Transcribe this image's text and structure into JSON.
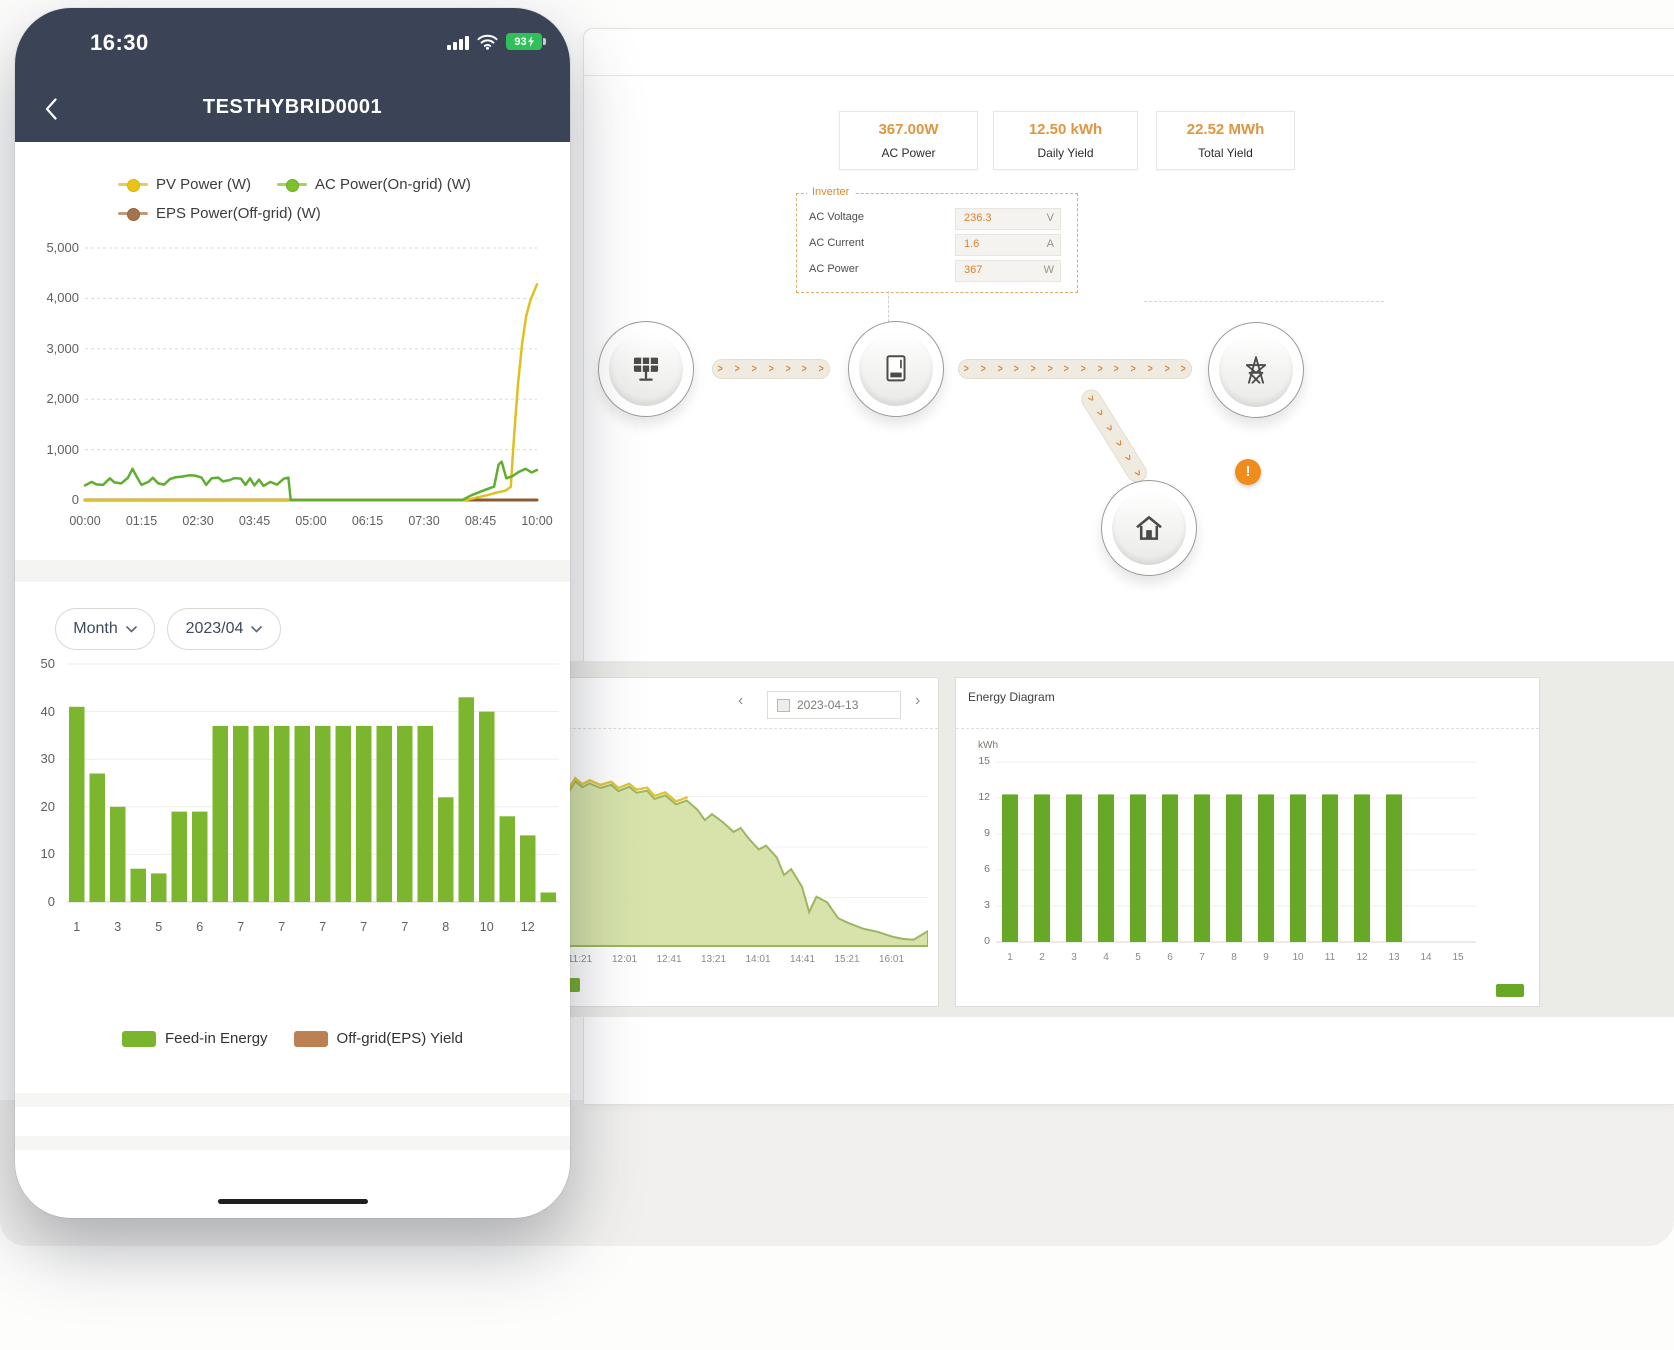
{
  "icons": {
    "back": "‹",
    "prev": "‹",
    "next": "›",
    "chevron": ">",
    "warning": "!"
  },
  "colors": {
    "header_navy": "#3b4456",
    "pv_yellow": "#e0c020",
    "ac_green": "#5fae32",
    "eps_brown": "#8a5a34",
    "bar_green": "#7cb62e",
    "desktop_bar_green": "#68a827",
    "area_fill": "#d5e2a6",
    "area_stroke": "#95b457",
    "area_top_yellow": "#e0c43c",
    "orange_accent": "#de9640",
    "battery_green": "#2fc158"
  },
  "phone": {
    "status_bar": {
      "time": "16:30",
      "battery": "93"
    },
    "nav": {
      "title": "TESTHYBRID0001"
    },
    "power_chart": {
      "type": "line",
      "ylim": [
        0,
        5000
      ],
      "xlim_hours": [
        0,
        10
      ],
      "y_ticks": [
        "5,000",
        "4,000",
        "3,000",
        "2,000",
        "1,000",
        "0"
      ],
      "x_ticks": [
        "00:00",
        "01:15",
        "02:30",
        "03:45",
        "05:00",
        "06:15",
        "07:30",
        "08:45",
        "10:00"
      ],
      "legend": [
        {
          "label": "PV Power (W)",
          "color": "#e9c416"
        },
        {
          "label": "AC Power(On-grid) (W)",
          "color": "#7cc22f"
        },
        {
          "label": "EPS Power(Off-grid) (W)",
          "color": "#a5744d"
        }
      ],
      "series": [
        {
          "name": "EPS Power(Off-grid) (W)",
          "color": "#8a5a34",
          "width": 3,
          "points": [
            [
              0,
              0
            ],
            [
              10,
              0
            ]
          ]
        },
        {
          "name": "PV Power (W)",
          "color": "#e0c020",
          "width": 2.5,
          "points": [
            [
              0,
              0
            ],
            [
              8.45,
              0
            ],
            [
              8.65,
              45
            ],
            [
              8.9,
              95
            ],
            [
              9.1,
              145
            ],
            [
              9.3,
              185
            ],
            [
              9.42,
              260
            ],
            [
              9.47,
              950
            ],
            [
              9.52,
              1600
            ],
            [
              9.58,
              2300
            ],
            [
              9.67,
              3100
            ],
            [
              9.76,
              3650
            ],
            [
              9.85,
              3950
            ],
            [
              9.94,
              4150
            ],
            [
              10,
              4280
            ]
          ]
        },
        {
          "name": "AC Power(On-grid) (W)",
          "color": "#5fae32",
          "width": 2.5,
          "points": [
            [
              0,
              290
            ],
            [
              0.15,
              360
            ],
            [
              0.25,
              310
            ],
            [
              0.4,
              300
            ],
            [
              0.55,
              430
            ],
            [
              0.65,
              350
            ],
            [
              0.8,
              330
            ],
            [
              0.95,
              440
            ],
            [
              1.05,
              620
            ],
            [
              1.15,
              450
            ],
            [
              1.25,
              300
            ],
            [
              1.4,
              360
            ],
            [
              1.5,
              440
            ],
            [
              1.62,
              330
            ],
            [
              1.75,
              305
            ],
            [
              1.88,
              415
            ],
            [
              2,
              450
            ],
            [
              2.15,
              465
            ],
            [
              2.3,
              490
            ],
            [
              2.45,
              480
            ],
            [
              2.58,
              445
            ],
            [
              2.68,
              300
            ],
            [
              2.8,
              430
            ],
            [
              2.95,
              445
            ],
            [
              3.05,
              370
            ],
            [
              3.2,
              395
            ],
            [
              3.3,
              435
            ],
            [
              3.45,
              425
            ],
            [
              3.55,
              300
            ],
            [
              3.65,
              430
            ],
            [
              3.75,
              290
            ],
            [
              3.85,
              405
            ],
            [
              3.95,
              280
            ],
            [
              4.1,
              360
            ],
            [
              4.25,
              305
            ],
            [
              4.4,
              425
            ],
            [
              4.5,
              445
            ],
            [
              4.55,
              0
            ],
            [
              8.35,
              0
            ],
            [
              8.55,
              95
            ],
            [
              8.75,
              165
            ],
            [
              8.95,
              235
            ],
            [
              9.05,
              265
            ],
            [
              9.15,
              705
            ],
            [
              9.22,
              760
            ],
            [
              9.32,
              430
            ],
            [
              9.45,
              470
            ],
            [
              9.6,
              560
            ],
            [
              9.75,
              620
            ],
            [
              9.88,
              545
            ],
            [
              10,
              595
            ]
          ]
        }
      ]
    },
    "filters": {
      "period": "Month",
      "date": "2023/04"
    },
    "energy_chart": {
      "type": "bar",
      "ylim": [
        0,
        50
      ],
      "y_ticks": [
        "50",
        "40",
        "30",
        "20",
        "10",
        "0"
      ],
      "x_ticks": [
        "1",
        "3",
        "5",
        "6",
        "7",
        "7",
        "7",
        "7",
        "7",
        "8",
        "10",
        "12"
      ],
      "bar_color": "#7cb62e",
      "values": [
        41,
        27,
        20,
        7,
        6,
        19,
        19,
        37,
        37,
        37,
        37,
        37,
        37,
        37,
        37,
        37,
        37,
        37,
        22,
        43,
        40,
        18,
        14,
        2
      ],
      "legend": [
        {
          "label": "Feed-in Energy",
          "color": "#7ab62d"
        },
        {
          "label": "Off-grid(EPS) Yield",
          "color": "#bb8153"
        }
      ]
    }
  },
  "desktop": {
    "stats": [
      {
        "value": "367.00W",
        "label": "AC Power"
      },
      {
        "value": "12.50 kWh",
        "label": "Daily Yield"
      },
      {
        "value": "22.52 MWh",
        "label": "Total Yield"
      }
    ],
    "inverter_panel": {
      "title": "Inverter",
      "rows": [
        {
          "label": "AC Voltage",
          "value": "236.3",
          "unit": "V"
        },
        {
          "label": "AC Current",
          "value": "1.6",
          "unit": "A"
        },
        {
          "label": "AC Power",
          "value": "367",
          "unit": "W"
        }
      ]
    },
    "flow": {
      "nodes": [
        "solar-panel",
        "inverter",
        "power-grid",
        "home"
      ],
      "warning": "!"
    },
    "day_panel": {
      "date": "2023-04-13",
      "ylim": [
        0,
        5000
      ],
      "x_ticks": [
        "11:21",
        "12:01",
        "12:41",
        "13:21",
        "14:01",
        "14:41",
        "15:21",
        "16:01"
      ],
      "area_points": [
        [
          0,
          3850
        ],
        [
          0.02,
          4150
        ],
        [
          0.04,
          4000
        ],
        [
          0.06,
          4100
        ],
        [
          0.09,
          3980
        ],
        [
          0.12,
          4060
        ],
        [
          0.14,
          3900
        ],
        [
          0.17,
          4010
        ],
        [
          0.19,
          3860
        ],
        [
          0.22,
          3910
        ],
        [
          0.24,
          3700
        ],
        [
          0.27,
          3790
        ],
        [
          0.3,
          3560
        ],
        [
          0.33,
          3660
        ],
        [
          0.36,
          3420
        ],
        [
          0.38,
          3160
        ],
        [
          0.4,
          3310
        ],
        [
          0.43,
          3110
        ],
        [
          0.46,
          2860
        ],
        [
          0.48,
          2960
        ],
        [
          0.5,
          2710
        ],
        [
          0.53,
          2410
        ],
        [
          0.55,
          2510
        ],
        [
          0.58,
          2210
        ],
        [
          0.6,
          1760
        ],
        [
          0.62,
          1910
        ],
        [
          0.65,
          1460
        ],
        [
          0.67,
          810
        ],
        [
          0.69,
          1210
        ],
        [
          0.72,
          1060
        ],
        [
          0.75,
          660
        ],
        [
          0.78,
          530
        ],
        [
          0.82,
          390
        ],
        [
          0.86,
          310
        ],
        [
          0.9,
          190
        ],
        [
          0.93,
          130
        ],
        [
          0.96,
          110
        ],
        [
          1,
          330
        ]
      ]
    },
    "energy_panel": {
      "title": "Energy Diagram",
      "unit": "kWh",
      "ylim": [
        0,
        15
      ],
      "y_ticks": [
        "15",
        "12",
        "9",
        "6",
        "3",
        "0"
      ],
      "x_ticks": [
        "1",
        "2",
        "3",
        "4",
        "5",
        "6",
        "7",
        "8",
        "9",
        "10",
        "11",
        "12",
        "13",
        "14",
        "15"
      ],
      "bar_color": "#68a827",
      "values": [
        12.3,
        12.3,
        12.3,
        12.3,
        12.3,
        12.3,
        12.3,
        12.3,
        12.3,
        12.3,
        12.3,
        12.3,
        12.3
      ]
    }
  }
}
